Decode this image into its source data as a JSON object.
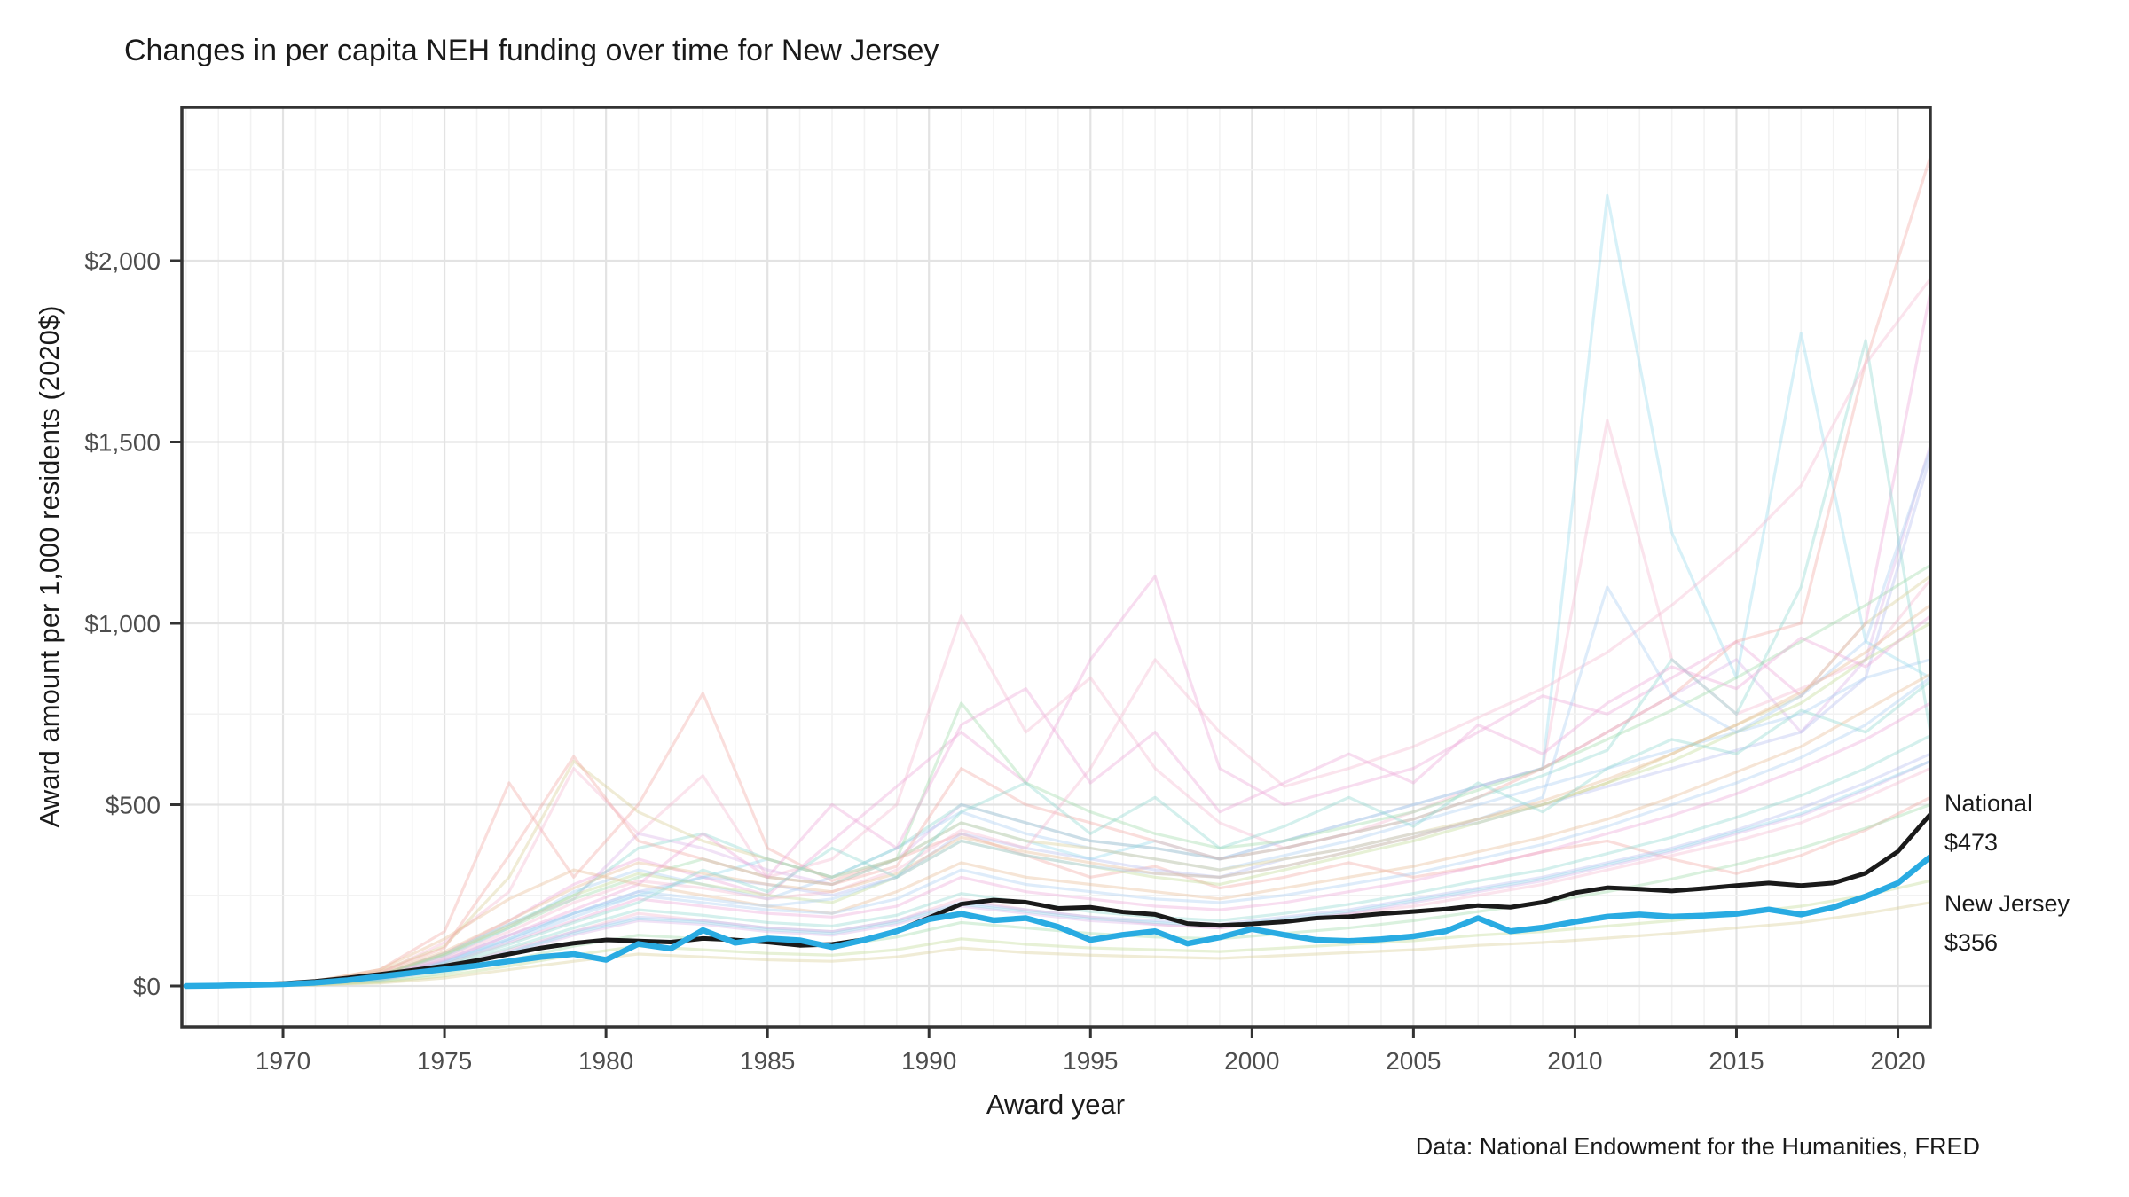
{
  "chart_data": {
    "type": "line",
    "title": "Changes in per capita NEH funding over time for New Jersey",
    "xlabel": "Award year",
    "ylabel": "Award amount per 1,000 residents (2020$)",
    "caption": "Data: National Endowment for the Humanities, FRED",
    "x_ticks": [
      1970,
      1975,
      1980,
      1985,
      1990,
      1995,
      2000,
      2005,
      2010,
      2015,
      2020
    ],
    "x_tick_labels": [
      "1970",
      "1975",
      "1980",
      "1985",
      "1990",
      "1995",
      "2000",
      "2005",
      "2010",
      "2015",
      "2020"
    ],
    "y_ticks": [
      0,
      500,
      1000,
      1500,
      2000
    ],
    "y_tick_labels": [
      "$0",
      "$500",
      "$1,000",
      "$1,500",
      "$2,000"
    ],
    "xlim": [
      1967,
      2021
    ],
    "ylim": [
      -110,
      2423
    ],
    "grid": {
      "x_minor_every_years": 1,
      "x_major_every_years": 5,
      "y_minor_every": 250,
      "y_major_every": 500,
      "grid_on": true
    },
    "legend_position": "none",
    "colors": {
      "national": "#1a1a1a",
      "new_jersey": "#29abe2",
      "grid_major": "#e3e3e3",
      "grid_minor": "#f2f2f2",
      "axis": "#333333",
      "tick_text": "#4d4d4d",
      "text": "#1a1a1a",
      "background": "#ffffff"
    },
    "annotations": [
      {
        "label": "National",
        "value_label": "$473",
        "value": 473,
        "year": 2021
      },
      {
        "label": "New Jersey",
        "value_label": "$356",
        "value": 356,
        "year": 2021
      }
    ],
    "years": [
      1967,
      1968,
      1969,
      1970,
      1971,
      1972,
      1973,
      1974,
      1975,
      1976,
      1977,
      1978,
      1979,
      1980,
      1981,
      1982,
      1983,
      1984,
      1985,
      1986,
      1987,
      1988,
      1989,
      1990,
      1991,
      1992,
      1993,
      1994,
      1995,
      1996,
      1997,
      1998,
      1999,
      2000,
      2001,
      2002,
      2003,
      2004,
      2005,
      2006,
      2007,
      2008,
      2009,
      2010,
      2011,
      2012,
      2013,
      2014,
      2015,
      2016,
      2017,
      2018,
      2019,
      2020,
      2021
    ],
    "series": [
      {
        "name": "National",
        "color": "#1a1a1a",
        "width": 5,
        "opacity": 1,
        "values": [
          0,
          2,
          4,
          7,
          13,
          22,
          32,
          43,
          55,
          70,
          88,
          105,
          118,
          127,
          124,
          121,
          131,
          127,
          121,
          112,
          115,
          128,
          152,
          188,
          226,
          237,
          231,
          214,
          217,
          204,
          197,
          172,
          167,
          171,
          177,
          187,
          191,
          199,
          205,
          212,
          222,
          217,
          231,
          257,
          271,
          267,
          262,
          269,
          277,
          284,
          277,
          284,
          311,
          371,
          473
        ]
      },
      {
        "name": "New Jersey",
        "color": "#29abe2",
        "width": 6.5,
        "opacity": 1,
        "values": [
          0,
          1,
          3,
          5,
          9,
          16,
          26,
          36,
          46,
          56,
          68,
          80,
          88,
          72,
          116,
          103,
          154,
          119,
          131,
          126,
          107,
          127,
          151,
          184,
          199,
          181,
          187,
          163,
          127,
          141,
          151,
          117,
          134,
          157,
          141,
          127,
          124,
          129,
          137,
          151,
          187,
          151,
          161,
          177,
          191,
          197,
          191,
          194,
          199,
          211,
          197,
          217,
          247,
          284,
          356
        ]
      }
    ],
    "background_years": [
      1967,
      1969,
      1971,
      1973,
      1975,
      1977,
      1979,
      1981,
      1983,
      1985,
      1987,
      1989,
      1991,
      1993,
      1995,
      1997,
      1999,
      2001,
      2003,
      2005,
      2007,
      2009,
      2011,
      2013,
      2015,
      2017,
      2019,
      2021
    ],
    "background_opacity": 0.38,
    "background_width": 3.2,
    "background_series": [
      {
        "color": "#f2a9a2",
        "values": [
          0,
          4,
          12,
          45,
          150,
          560,
          300,
          500,
          807,
          380,
          290,
          350,
          420,
          360,
          300,
          330,
          270,
          300,
          340,
          300,
          330,
          370,
          400,
          350,
          310,
          360,
          430,
          520
        ]
      },
      {
        "color": "#f5b8d0",
        "values": [
          0,
          3,
          10,
          35,
          120,
          260,
          600,
          420,
          580,
          300,
          350,
          500,
          1020,
          700,
          850,
          600,
          450,
          380,
          420,
          480,
          550,
          600,
          1560,
          900,
          750,
          820,
          900,
          1120
        ]
      },
      {
        "color": "#eda5d8",
        "values": [
          0,
          2,
          8,
          30,
          90,
          180,
          280,
          350,
          300,
          250,
          400,
          550,
          700,
          560,
          900,
          1130,
          600,
          500,
          550,
          600,
          700,
          800,
          750,
          850,
          950,
          800,
          1000,
          1912
        ]
      },
      {
        "color": "#d9b3e8",
        "values": [
          0,
          3,
          9,
          28,
          85,
          170,
          240,
          420,
          380,
          320,
          280,
          350,
          500,
          450,
          400,
          380,
          350,
          400,
          450,
          500,
          550,
          600,
          700,
          800,
          900,
          700,
          900,
          1490
        ]
      },
      {
        "color": "#b6bcee",
        "values": [
          0,
          2,
          7,
          25,
          70,
          140,
          200,
          260,
          300,
          280,
          250,
          300,
          420,
          380,
          350,
          320,
          300,
          350,
          380,
          420,
          450,
          500,
          550,
          600,
          650,
          700,
          850,
          1460
        ]
      },
      {
        "color": "#a9cdf2",
        "values": [
          0,
          3,
          8,
          26,
          80,
          160,
          260,
          320,
          280,
          240,
          300,
          380,
          480,
          420,
          380,
          350,
          320,
          360,
          400,
          450,
          500,
          550,
          600,
          650,
          700,
          750,
          850,
          900
        ]
      },
      {
        "color": "#97d9ec",
        "values": [
          0,
          2,
          6,
          22,
          65,
          130,
          200,
          250,
          300,
          350,
          300,
          350,
          450,
          400,
          350,
          400,
          350,
          400,
          450,
          500,
          550,
          600,
          2180,
          1250,
          850,
          1800,
          950,
          850
        ]
      },
      {
        "color": "#8fd8cf",
        "values": [
          0,
          3,
          9,
          30,
          90,
          170,
          250,
          380,
          420,
          350,
          300,
          380,
          500,
          450,
          400,
          380,
          350,
          380,
          420,
          460,
          520,
          580,
          650,
          900,
          750,
          1100,
          1780,
          700
        ]
      },
      {
        "color": "#9fdaa8",
        "values": [
          0,
          2,
          8,
          28,
          85,
          160,
          240,
          300,
          350,
          300,
          280,
          350,
          780,
          560,
          480,
          420,
          380,
          400,
          440,
          480,
          540,
          600,
          680,
          760,
          850,
          950,
          1050,
          1160
        ]
      },
      {
        "color": "#c0db93",
        "values": [
          0,
          3,
          9,
          30,
          88,
          165,
          250,
          310,
          280,
          250,
          230,
          300,
          400,
          360,
          330,
          300,
          280,
          320,
          360,
          400,
          450,
          500,
          560,
          620,
          700,
          780,
          900,
          1000
        ]
      },
      {
        "color": "#d8cd92",
        "values": [
          0,
          4,
          12,
          40,
          110,
          300,
          620,
          480,
          400,
          350,
          300,
          350,
          450,
          400,
          380,
          350,
          320,
          350,
          380,
          420,
          460,
          500,
          560,
          640,
          720,
          800,
          1000,
          1130
        ]
      },
      {
        "color": "#e8bb94",
        "values": [
          0,
          5,
          14,
          45,
          130,
          240,
          320,
          280,
          250,
          220,
          200,
          260,
          340,
          300,
          280,
          260,
          240,
          270,
          300,
          330,
          370,
          410,
          460,
          520,
          590,
          660,
          760,
          860
        ]
      },
      {
        "color": "#f2a9a2",
        "values": [
          0,
          4,
          11,
          38,
          105,
          360,
          633,
          400,
          350,
          300,
          280,
          330,
          600,
          500,
          450,
          400,
          350,
          380,
          420,
          460,
          520,
          600,
          700,
          800,
          950,
          1000,
          1720,
          2286
        ]
      },
      {
        "color": "#f5b8d0",
        "values": [
          0,
          2,
          6,
          18,
          50,
          100,
          150,
          200,
          180,
          160,
          150,
          180,
          240,
          210,
          190,
          170,
          160,
          180,
          200,
          220,
          250,
          280,
          320,
          360,
          400,
          450,
          520,
          600
        ]
      },
      {
        "color": "#eda5d8",
        "values": [
          0,
          2,
          7,
          20,
          60,
          120,
          180,
          240,
          220,
          200,
          190,
          220,
          300,
          260,
          240,
          220,
          210,
          230,
          260,
          290,
          330,
          370,
          420,
          470,
          530,
          600,
          680,
          780
        ]
      },
      {
        "color": "#d9b3e8",
        "values": [
          0,
          1,
          5,
          15,
          45,
          90,
          140,
          180,
          170,
          150,
          140,
          170,
          220,
          200,
          180,
          170,
          160,
          180,
          200,
          230,
          260,
          290,
          330,
          370,
          420,
          470,
          540,
          620
        ]
      },
      {
        "color": "#b6bcee",
        "values": [
          0,
          2,
          6,
          17,
          50,
          95,
          150,
          190,
          180,
          160,
          150,
          180,
          230,
          210,
          190,
          180,
          170,
          190,
          210,
          240,
          270,
          300,
          340,
          380,
          430,
          490,
          560,
          640
        ]
      },
      {
        "color": "#a9cdf2",
        "values": [
          0,
          2,
          7,
          22,
          65,
          125,
          190,
          250,
          230,
          210,
          200,
          240,
          320,
          280,
          260,
          240,
          230,
          250,
          280,
          310,
          350,
          390,
          440,
          500,
          560,
          630,
          720,
          850
        ]
      },
      {
        "color": "#97d9ec",
        "values": [
          0,
          1,
          5,
          16,
          48,
          92,
          145,
          185,
          175,
          155,
          145,
          175,
          225,
          205,
          185,
          175,
          165,
          185,
          205,
          235,
          265,
          295,
          335,
          375,
          425,
          475,
          545,
          620
        ]
      },
      {
        "color": "#8fd8cf",
        "values": [
          0,
          2,
          6,
          18,
          55,
          105,
          160,
          210,
          195,
          175,
          165,
          195,
          255,
          230,
          205,
          190,
          180,
          200,
          225,
          255,
          290,
          320,
          365,
          410,
          465,
          525,
          600,
          690
        ]
      },
      {
        "color": "#9fdaa8",
        "values": [
          0,
          1,
          4,
          12,
          35,
          70,
          110,
          140,
          130,
          120,
          110,
          135,
          175,
          160,
          145,
          135,
          130,
          145,
          160,
          180,
          205,
          230,
          260,
          295,
          335,
          380,
          435,
          500
        ]
      },
      {
        "color": "#c0db93",
        "values": [
          0,
          1,
          3,
          10,
          28,
          55,
          85,
          110,
          100,
          90,
          85,
          100,
          130,
          115,
          105,
          100,
          95,
          105,
          115,
          125,
          140,
          150,
          165,
          180,
          200,
          220,
          250,
          290
        ]
      },
      {
        "color": "#d8cd92",
        "values": [
          0,
          1,
          3,
          8,
          22,
          45,
          68,
          88,
          80,
          72,
          68,
          80,
          105,
          92,
          85,
          80,
          76,
          84,
          92,
          100,
          112,
          120,
          132,
          145,
          160,
          175,
          200,
          230
        ]
      },
      {
        "color": "#f5b8d0",
        "values": [
          0,
          2,
          8,
          26,
          78,
          150,
          230,
          290,
          270,
          240,
          260,
          320,
          430,
          380,
          600,
          900,
          700,
          550,
          600,
          660,
          740,
          820,
          920,
          1050,
          1200,
          1380,
          1716,
          1950
        ]
      },
      {
        "color": "#a9cdf2",
        "values": [
          0,
          2,
          7,
          23,
          68,
          130,
          200,
          260,
          240,
          220,
          240,
          300,
          400,
          360,
          330,
          310,
          300,
          330,
          370,
          410,
          460,
          520,
          1100,
          800,
          700,
          800,
          950,
          1480
        ]
      },
      {
        "color": "#e8bb94",
        "values": [
          0,
          3,
          10,
          32,
          95,
          180,
          270,
          340,
          310,
          280,
          260,
          310,
          410,
          370,
          340,
          310,
          300,
          330,
          370,
          410,
          460,
          510,
          570,
          640,
          720,
          810,
          920,
          1050
        ]
      },
      {
        "color": "#eda5d8",
        "values": [
          0,
          2,
          7,
          24,
          72,
          140,
          210,
          280,
          420,
          300,
          500,
          380,
          720,
          820,
          560,
          700,
          480,
          560,
          640,
          560,
          720,
          640,
          780,
          880,
          820,
          960,
          880,
          1020
        ]
      },
      {
        "color": "#8fd8cf",
        "values": [
          0,
          2,
          7,
          21,
          60,
          115,
          175,
          230,
          320,
          260,
          380,
          300,
          480,
          560,
          420,
          520,
          380,
          440,
          520,
          440,
          560,
          480,
          600,
          680,
          640,
          760,
          700,
          840
        ]
      }
    ]
  }
}
